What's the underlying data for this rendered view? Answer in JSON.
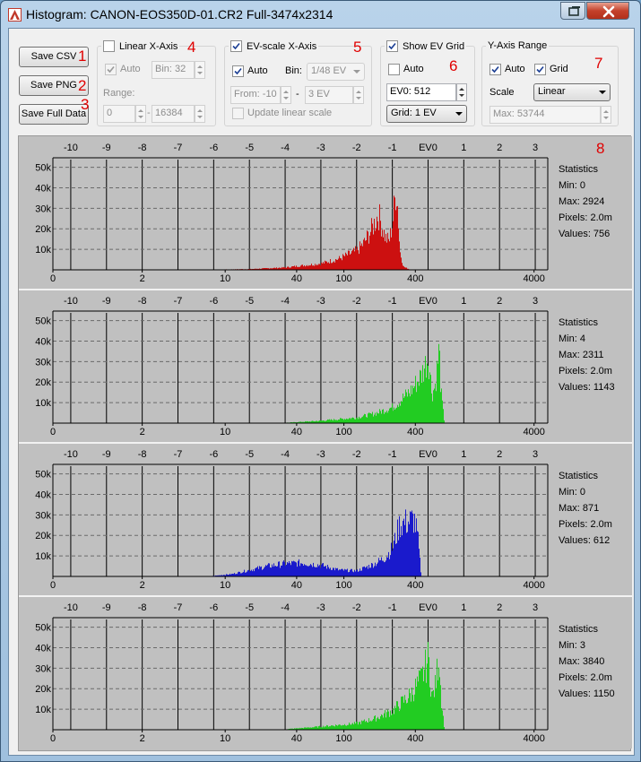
{
  "window": {
    "title": "Histogram: CANON-EOS350D-01.CR2 Full-3474x2314",
    "app_icon": "histogram-app-icon",
    "restore_icon": "restore-window-icon",
    "close_icon": "close-icon"
  },
  "buttons": {
    "save_csv": "Save CSV",
    "save_png": "Save PNG",
    "save_full": "Save Full Data"
  },
  "annotations": [
    "1",
    "2",
    "3",
    "4",
    "5",
    "6",
    "7",
    "8"
  ],
  "linear_x": {
    "title": "Linear X-Axis",
    "checked": false,
    "auto_label": "Auto",
    "auto_checked": true,
    "bin": "Bin: 32",
    "range_label": "Range:",
    "range_from": "0",
    "range_sep": "-",
    "range_to": "16384"
  },
  "ev_x": {
    "title": "EV-scale X-Axis",
    "checked": true,
    "auto_label": "Auto",
    "auto_checked": true,
    "bin_label": "Bin:",
    "bin_value": "1/48 EV",
    "from": "From: -10",
    "sep": "-",
    "to": "3 EV",
    "update_label": "Update linear scale",
    "update_checked": false
  },
  "ev_grid": {
    "title": "Show EV Grid",
    "checked": true,
    "auto_label": "Auto",
    "auto_checked": false,
    "ev0": "EV0: 512",
    "grid": "Grid: 1 EV"
  },
  "y_axis": {
    "title": "Y-Axis Range",
    "auto_label": "Auto",
    "auto_checked": true,
    "grid_label": "Grid",
    "grid_checked": true,
    "scale_label": "Scale",
    "scale_value": "Linear",
    "max": "Max: 53744"
  },
  "chart_data": [
    {
      "type": "area",
      "channel": "red",
      "color": "#cc1010",
      "top_ticks": [
        "-10",
        "-9",
        "-8",
        "-7",
        "-6",
        "-5",
        "-4",
        "-3",
        "-2",
        "-1",
        "EV0",
        "1",
        "2",
        "3"
      ],
      "top_tick_ev": [
        -10,
        -9,
        -8,
        -7,
        -6,
        -5,
        -4,
        -3,
        -2,
        -1,
        0,
        1,
        2,
        3
      ],
      "bottom_ticks": [
        "0",
        "2",
        "10",
        "40",
        "100",
        "400",
        "4000"
      ],
      "bottom_tick_values": [
        0,
        2,
        10,
        40,
        100,
        400,
        4000
      ],
      "y_ticks": [
        "50k",
        "40k",
        "30k",
        "20k",
        "10k"
      ],
      "y_tick_values": [
        50000,
        40000,
        30000,
        20000,
        10000
      ],
      "ylim": [
        0,
        53744
      ],
      "grid": true,
      "stats": {
        "title": "Statistics",
        "min": "Min: 0",
        "max": "Max: 2924",
        "pixels": "Pixels: 2.0m",
        "values": "Values: 756"
      },
      "profile": {
        "x": [
          -6.5,
          -5,
          -4,
          -3,
          -2.5,
          -2,
          -1.8,
          -1.6,
          -1.4,
          -1.2,
          -1.1,
          -1.0,
          -0.9,
          -0.85,
          -0.8,
          -0.7,
          -0.5
        ],
        "y": [
          0,
          500,
          1500,
          4000,
          7000,
          12000,
          17000,
          25000,
          35000,
          20000,
          18000,
          30000,
          53000,
          35000,
          12000,
          2000,
          0
        ]
      }
    },
    {
      "type": "area",
      "channel": "green",
      "color": "#22cc22",
      "top_ticks": [
        "-10",
        "-9",
        "-8",
        "-7",
        "-6",
        "-5",
        "-4",
        "-3",
        "-2",
        "-1",
        "EV0",
        "1",
        "2",
        "3"
      ],
      "top_tick_ev": [
        -10,
        -9,
        -8,
        -7,
        -6,
        -5,
        -4,
        -3,
        -2,
        -1,
        0,
        1,
        2,
        3
      ],
      "bottom_ticks": [
        "0",
        "2",
        "10",
        "40",
        "100",
        "400",
        "4000"
      ],
      "bottom_tick_values": [
        0,
        2,
        10,
        40,
        100,
        400,
        4000
      ],
      "y_ticks": [
        "50k",
        "40k",
        "30k",
        "20k",
        "10k"
      ],
      "y_tick_values": [
        50000,
        40000,
        30000,
        20000,
        10000
      ],
      "ylim": [
        0,
        53744
      ],
      "grid": true,
      "stats": {
        "title": "Statistics",
        "min": "Min: 4",
        "max": "Max: 2311",
        "pixels": "Pixels: 2.0m",
        "values": "Values: 1143"
      },
      "profile": {
        "x": [
          -4.2,
          -3,
          -2,
          -1.5,
          -1,
          -0.5,
          -0.2,
          0,
          0.1,
          0.2,
          0.3,
          0.35,
          0.45
        ],
        "y": [
          0,
          1500,
          3500,
          6000,
          10000,
          20000,
          30000,
          42000,
          18000,
          25000,
          47000,
          20000,
          0
        ]
      }
    },
    {
      "type": "area",
      "channel": "blue",
      "color": "#1a1acc",
      "top_ticks": [
        "-10",
        "-9",
        "-8",
        "-7",
        "-6",
        "-5",
        "-4",
        "-3",
        "-2",
        "-1",
        "EV0",
        "1",
        "2",
        "3"
      ],
      "top_tick_ev": [
        -10,
        -9,
        -8,
        -7,
        -6,
        -5,
        -4,
        -3,
        -2,
        -1,
        0,
        1,
        2,
        3
      ],
      "bottom_ticks": [
        "0",
        "2",
        "10",
        "40",
        "100",
        "400",
        "4000"
      ],
      "bottom_tick_values": [
        0,
        2,
        10,
        40,
        100,
        400,
        4000
      ],
      "y_ticks": [
        "50k",
        "40k",
        "30k",
        "20k",
        "10k"
      ],
      "y_tick_values": [
        50000,
        40000,
        30000,
        20000,
        10000
      ],
      "ylim": [
        0,
        53744
      ],
      "grid": true,
      "stats": {
        "title": "Statistics",
        "min": "Min: 0",
        "max": "Max: 871",
        "pixels": "Pixels: 2.0m",
        "values": "Values: 612"
      },
      "profile": {
        "x": [
          -6.2,
          -5.5,
          -5,
          -4.5,
          -4,
          -3.5,
          -3,
          -2.5,
          -2,
          -1.5,
          -1.2,
          -1,
          -0.8,
          -0.6,
          -0.4,
          -0.3,
          -0.2
        ],
        "y": [
          0,
          1500,
          4000,
          6500,
          8000,
          8500,
          7000,
          4000,
          3500,
          8000,
          12000,
          18000,
          33000,
          34000,
          36000,
          25000,
          0
        ]
      }
    },
    {
      "type": "area",
      "channel": "green",
      "color": "#22cc22",
      "top_ticks": [
        "-10",
        "-9",
        "-8",
        "-7",
        "-6",
        "-5",
        "-4",
        "-3",
        "-2",
        "-1",
        "EV0",
        "1",
        "2",
        "3"
      ],
      "top_tick_ev": [
        -10,
        -9,
        -8,
        -7,
        -6,
        -5,
        -4,
        -3,
        -2,
        -1,
        0,
        1,
        2,
        3
      ],
      "bottom_ticks": [
        "0",
        "2",
        "10",
        "40",
        "100",
        "400",
        "4000"
      ],
      "bottom_tick_values": [
        0,
        2,
        10,
        40,
        100,
        400,
        4000
      ],
      "y_ticks": [
        "50k",
        "40k",
        "30k",
        "20k",
        "10k"
      ],
      "y_tick_values": [
        50000,
        40000,
        30000,
        20000,
        10000
      ],
      "ylim": [
        0,
        53744
      ],
      "grid": true,
      "stats": {
        "title": "Statistics",
        "min": "Min: 3",
        "max": "Max: 3840",
        "pixels": "Pixels: 2.0m",
        "values": "Values: 1150"
      },
      "profile": {
        "x": [
          -4.2,
          -3,
          -2,
          -1.5,
          -1,
          -0.5,
          -0.2,
          0,
          0.1,
          0.2,
          0.3,
          0.35,
          0.45
        ],
        "y": [
          0,
          2000,
          4000,
          7000,
          12000,
          22000,
          32000,
          45000,
          20000,
          28000,
          49000,
          22000,
          0
        ]
      }
    }
  ]
}
